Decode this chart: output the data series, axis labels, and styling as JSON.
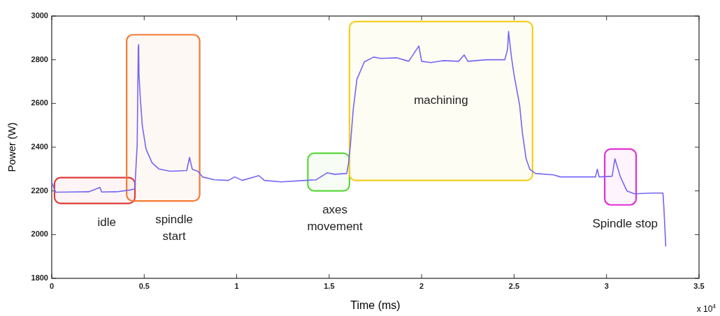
{
  "chart_data": {
    "type": "line",
    "xlabel": "Time (ms)",
    "ylabel": "Power (W)",
    "xlim": [
      0,
      3.5
    ],
    "xticks": [
      0,
      0.5,
      1,
      1.5,
      2,
      2.5,
      3,
      3.5
    ],
    "ylim": [
      1800,
      3000
    ],
    "yticks": [
      1800,
      2000,
      2200,
      2400,
      2600,
      2800,
      3000
    ],
    "grid": false,
    "marker": "none",
    "line_style": "solid",
    "series": [
      {
        "color": "#7466f5",
        "x": [
          0,
          0.02,
          0.1,
          0.2,
          0.26,
          0.27,
          0.35,
          0.43,
          0.45,
          0.455,
          0.462,
          0.468,
          0.47,
          0.472,
          0.479,
          0.49,
          0.51,
          0.543,
          0.58,
          0.64,
          0.73,
          0.745,
          0.76,
          0.79,
          0.815,
          0.88,
          0.955,
          0.99,
          1.03,
          1.12,
          1.15,
          1.24,
          1.37,
          1.43,
          1.49,
          1.53,
          1.595,
          1.605,
          1.615,
          1.63,
          1.65,
          1.69,
          1.74,
          1.78,
          1.865,
          1.93,
          1.985,
          2.0,
          2.05,
          2.115,
          2.2,
          2.23,
          2.25,
          2.35,
          2.45,
          2.465,
          2.47,
          2.485,
          2.5,
          2.53,
          2.545,
          2.565,
          2.585,
          2.615,
          2.715,
          2.75,
          2.83,
          2.94,
          2.95,
          2.96,
          3.03,
          3.045,
          3.075,
          3.11,
          3.15,
          3.25,
          3.305,
          3.31,
          3.32
        ],
        "values": [
          2240,
          2194,
          2195,
          2196,
          2216,
          2195,
          2196,
          2205,
          2210,
          2300,
          2410,
          2857,
          2870,
          2730,
          2624,
          2497,
          2391,
          2328,
          2300,
          2290,
          2293,
          2353,
          2299,
          2290,
          2264,
          2251,
          2248,
          2264,
          2248,
          2270,
          2248,
          2241,
          2248,
          2251,
          2283,
          2276,
          2280,
          2328,
          2411,
          2570,
          2710,
          2790,
          2812,
          2806,
          2809,
          2793,
          2863,
          2793,
          2787,
          2796,
          2793,
          2822,
          2793,
          2800,
          2800,
          2850,
          2930,
          2816,
          2730,
          2592,
          2465,
          2347,
          2299,
          2280,
          2273,
          2264,
          2264,
          2264,
          2299,
          2264,
          2267,
          2347,
          2264,
          2200,
          2187,
          2190,
          2190,
          2123,
          1948
        ]
      }
    ],
    "bands": [
      {
        "axis": "x",
        "from": 0.015,
        "to": 0.45,
        "color": "#e03a3a",
        "label": "idle"
      },
      {
        "axis": "x",
        "from": 0.405,
        "to": 0.8,
        "color": "#f47a32",
        "label": "spindle\nstart"
      },
      {
        "axis": "x",
        "from": 1.385,
        "to": 1.61,
        "color": "#5ad83a",
        "label": "axes\nmovement"
      },
      {
        "axis": "x",
        "from": 1.61,
        "to": 2.6,
        "color": "#f2cf1e",
        "label": "machining"
      },
      {
        "axis": "x",
        "from": 2.99,
        "to": 3.16,
        "color": "#e02fd2",
        "label": "Spindle stop"
      }
    ],
    "annotations": [
      "x 10$^{4}$"
    ]
  }
}
